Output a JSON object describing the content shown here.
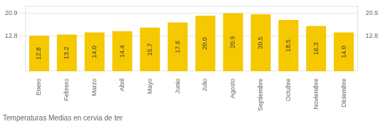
{
  "chart_data": {
    "type": "bar",
    "title": "Temperaturas Medias en cervia de ter",
    "categories": [
      "Enero",
      "Febrero",
      "Marzo",
      "Abril",
      "Mayo",
      "Junio",
      "Julio",
      "Agosto",
      "Septiembre",
      "Octubre",
      "Noviembre",
      "Diciembre"
    ],
    "values": [
      12.8,
      13.2,
      14.0,
      14.4,
      15.7,
      17.6,
      20.0,
      20.9,
      20.5,
      18.5,
      16.3,
      14.0
    ],
    "value_labels": [
      "12.8",
      "13.2",
      "14.0",
      "14.4",
      "15.7",
      "17.6",
      "20.0",
      "20.9",
      "20.5",
      "18.5",
      "16.3",
      "14.0"
    ],
    "color": "#F5C800",
    "ylim": [
      0,
      23.5
    ],
    "yticks": [
      12.8,
      20.9
    ],
    "y2lim": [
      0,
      23.5
    ],
    "y2ticks": [
      12.8,
      20.9
    ],
    "grid": true,
    "data_labels": true
  }
}
